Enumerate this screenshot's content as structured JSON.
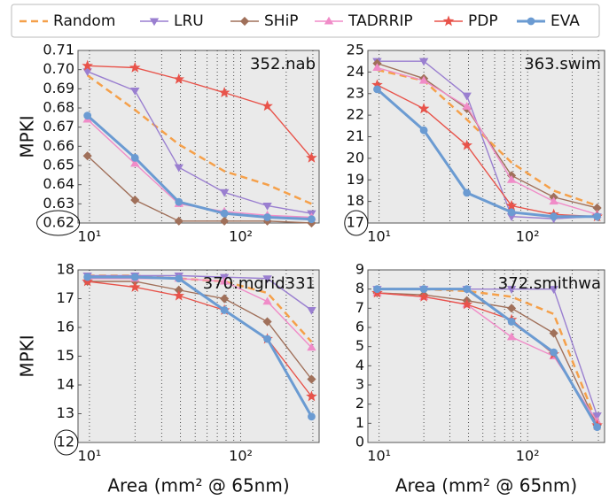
{
  "chart_data": [
    {
      "type": "line",
      "title": "352.nab",
      "ylabel": "MPKI",
      "log_x": true,
      "x": [
        9.7,
        20,
        39,
        78,
        150,
        294
      ],
      "xlim": [
        8.4,
        330
      ],
      "xticks": [
        {
          "value": 10,
          "label": "10¹"
        },
        {
          "value": 100,
          "label": "10²"
        }
      ],
      "xminorticks": [
        20,
        30,
        40,
        50,
        60,
        70,
        80,
        90,
        200,
        300
      ],
      "ylim": [
        0.62,
        0.71
      ],
      "yticks": [
        0.62,
        0.63,
        0.64,
        0.65,
        0.66,
        0.67,
        0.68,
        0.69,
        {
          "value": 0.7,
          "label": "0.70"
        },
        0.71
      ],
      "circled_ytick": 0,
      "series": [
        {
          "name": "Random",
          "color": "#f5a04a",
          "dash": true,
          "values": [
            0.697,
            0.679,
            0.661,
            0.647,
            0.64,
            0.63
          ]
        },
        {
          "name": "LRU",
          "color": "#9a7fd0",
          "marker": "v",
          "values": [
            0.699,
            0.689,
            0.649,
            0.636,
            0.629,
            0.625
          ]
        },
        {
          "name": "SHiP",
          "color": "#a0705a",
          "marker": "D",
          "values": [
            0.655,
            0.632,
            0.621,
            0.621,
            0.621,
            0.62
          ]
        },
        {
          "name": "TADRRIP",
          "color": "#f08cc8",
          "marker": "^",
          "values": [
            0.674,
            0.651,
            0.63,
            0.626,
            0.624,
            0.623
          ]
        },
        {
          "name": "PDP",
          "color": "#e8534a",
          "marker": "*",
          "values": [
            0.702,
            0.701,
            0.695,
            0.688,
            0.681,
            0.654
          ]
        },
        {
          "name": "EVA",
          "color": "#6b9bd2",
          "marker": "o",
          "width": 3,
          "values": [
            0.676,
            0.654,
            0.631,
            0.625,
            0.623,
            0.622
          ]
        }
      ]
    },
    {
      "type": "line",
      "title": "363.swim",
      "log_x": true,
      "x": [
        9.7,
        20,
        39,
        78,
        150,
        294
      ],
      "xlim": [
        8.4,
        330
      ],
      "xticks": [
        {
          "value": 10,
          "label": "10¹"
        },
        {
          "value": 100,
          "label": "10²"
        }
      ],
      "xminorticks": [
        20,
        30,
        40,
        50,
        60,
        70,
        80,
        90,
        200,
        300
      ],
      "ylim": [
        17,
        25
      ],
      "yticks": [
        17,
        18,
        19,
        20,
        21,
        22,
        23,
        24,
        25
      ],
      "circled_ytick": 0,
      "series": [
        {
          "name": "Random",
          "color": "#f5a04a",
          "dash": true,
          "values": [
            24.1,
            23.6,
            21.8,
            19.8,
            18.5,
            17.8
          ]
        },
        {
          "name": "LRU",
          "color": "#9a7fd0",
          "marker": "v",
          "values": [
            24.5,
            24.5,
            22.9,
            17.3,
            17.2,
            17.3
          ]
        },
        {
          "name": "SHiP",
          "color": "#a0705a",
          "marker": "D",
          "values": [
            24.4,
            23.7,
            22.3,
            19.2,
            18.2,
            17.7
          ]
        },
        {
          "name": "TADRRIP",
          "color": "#f08cc8",
          "marker": "^",
          "values": [
            24.2,
            23.6,
            22.4,
            19.0,
            18.0,
            17.4
          ]
        },
        {
          "name": "PDP",
          "color": "#e8534a",
          "marker": "*",
          "values": [
            23.4,
            22.3,
            20.6,
            17.8,
            17.4,
            17.3
          ]
        },
        {
          "name": "EVA",
          "color": "#6b9bd2",
          "marker": "o",
          "width": 3,
          "values": [
            23.2,
            21.3,
            18.4,
            17.5,
            17.3,
            17.3
          ]
        }
      ]
    },
    {
      "type": "line",
      "title": "370.mgrid331",
      "ylabel": "MPKI",
      "xlabel": "Area (mm² @ 65nm)",
      "log_x": true,
      "x": [
        9.7,
        20,
        39,
        78,
        150,
        294
      ],
      "xlim": [
        8.4,
        330
      ],
      "xticks": [
        {
          "value": 10,
          "label": "10¹"
        },
        {
          "value": 100,
          "label": "10²"
        }
      ],
      "xminorticks": [
        20,
        30,
        40,
        50,
        60,
        70,
        80,
        90,
        200,
        300
      ],
      "ylim": [
        12,
        18
      ],
      "yticks": [
        12,
        13,
        14,
        15,
        16,
        17,
        18
      ],
      "circled_ytick": 0,
      "series": [
        {
          "name": "Random",
          "color": "#f5a04a",
          "dash": true,
          "values": [
            17.8,
            17.8,
            17.7,
            17.6,
            17.2,
            15.5
          ]
        },
        {
          "name": "LRU",
          "color": "#9a7fd0",
          "marker": "v",
          "values": [
            17.8,
            17.8,
            17.8,
            17.75,
            17.7,
            16.6
          ]
        },
        {
          "name": "SHiP",
          "color": "#a0705a",
          "marker": "D",
          "values": [
            17.6,
            17.6,
            17.3,
            17.0,
            16.2,
            14.2
          ]
        },
        {
          "name": "TADRRIP",
          "color": "#f08cc8",
          "marker": "^",
          "values": [
            17.7,
            17.7,
            17.7,
            17.6,
            16.9,
            15.3
          ]
        },
        {
          "name": "PDP",
          "color": "#e8534a",
          "marker": "*",
          "values": [
            17.6,
            17.4,
            17.1,
            16.6,
            15.6,
            13.6
          ]
        },
        {
          "name": "EVA",
          "color": "#6b9bd2",
          "marker": "o",
          "width": 3,
          "values": [
            17.75,
            17.75,
            17.7,
            16.6,
            15.6,
            12.9
          ]
        }
      ]
    },
    {
      "type": "line",
      "title": "372.smithwa",
      "xlabel": "Area (mm² @ 65nm)",
      "log_x": true,
      "x": [
        9.7,
        20,
        39,
        78,
        150,
        294
      ],
      "xlim": [
        8.4,
        330
      ],
      "xticks": [
        {
          "value": 10,
          "label": "10¹"
        },
        {
          "value": 100,
          "label": "10²"
        }
      ],
      "xminorticks": [
        20,
        30,
        40,
        50,
        60,
        70,
        80,
        90,
        200,
        300
      ],
      "ylim": [
        0,
        9
      ],
      "yticks": [
        0,
        1,
        2,
        3,
        4,
        5,
        6,
        7,
        8,
        9
      ],
      "series": [
        {
          "name": "Random",
          "color": "#f5a04a",
          "dash": true,
          "values": [
            8.0,
            8.0,
            7.9,
            7.6,
            6.7,
            1.0
          ]
        },
        {
          "name": "LRU",
          "color": "#9a7fd0",
          "marker": "v",
          "values": [
            8.0,
            8.0,
            8.0,
            8.0,
            8.0,
            1.4
          ]
        },
        {
          "name": "SHiP",
          "color": "#a0705a",
          "marker": "D",
          "values": [
            7.8,
            7.7,
            7.4,
            7.0,
            5.7,
            0.9
          ]
        },
        {
          "name": "TADRRIP",
          "color": "#f08cc8",
          "marker": "^",
          "values": [
            7.8,
            7.6,
            7.2,
            5.5,
            4.5,
            1.1
          ]
        },
        {
          "name": "PDP",
          "color": "#e8534a",
          "marker": "*",
          "values": [
            7.8,
            7.6,
            7.2,
            6.4,
            4.6,
            0.9
          ]
        },
        {
          "name": "EVA",
          "color": "#6b9bd2",
          "marker": "o",
          "width": 3,
          "values": [
            8.0,
            8.0,
            8.0,
            6.3,
            4.7,
            0.8
          ]
        }
      ]
    }
  ]
}
